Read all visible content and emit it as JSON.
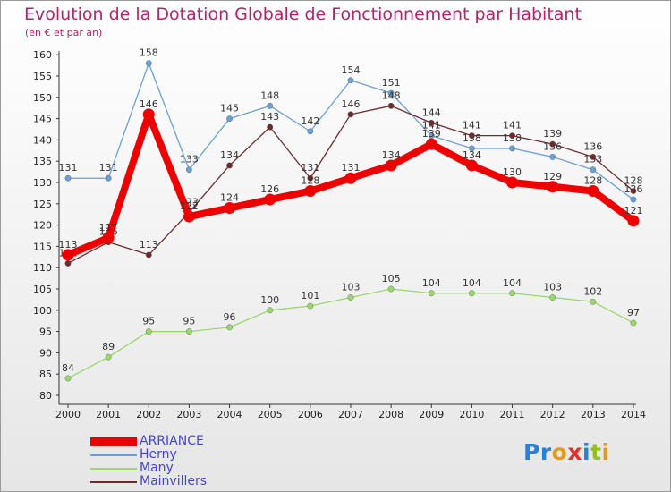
{
  "title": "Evolution de la Dotation Globale de Fonctionnement par Habitant",
  "subtitle": "(en € et par an)",
  "logo": {
    "text": "Proxiti",
    "letter_colors": [
      "#2b7fd4",
      "#2b7fd4",
      "#e69a1c",
      "#e0312c",
      "#2b7fd4",
      "#93c01f",
      "#e69a1c"
    ]
  },
  "chart_data": {
    "type": "line",
    "x": [
      "2000",
      "2001",
      "2002",
      "2003",
      "2004",
      "2005",
      "2006",
      "2007",
      "2008",
      "2009",
      "2010",
      "2011",
      "2012",
      "2013",
      "2014"
    ],
    "ylim": [
      80,
      160
    ],
    "yticks": [
      80,
      85,
      90,
      95,
      100,
      105,
      110,
      115,
      120,
      125,
      130,
      135,
      140,
      145,
      150,
      155,
      160
    ],
    "grid": false,
    "legend_position": "bottom-left",
    "series": [
      {
        "name": "Herny",
        "color": "#6aa0d6",
        "values": [
          131,
          131,
          158,
          133,
          145,
          148,
          142,
          154,
          151,
          141,
          138,
          138,
          136,
          133,
          126
        ]
      },
      {
        "name": "Many",
        "color": "#99d86a",
        "values": [
          84,
          89,
          95,
          95,
          96,
          100,
          101,
          103,
          105,
          104,
          104,
          104,
          103,
          102,
          97
        ]
      },
      {
        "name": "Mainvillers",
        "color": "#6b2b2b",
        "values": [
          111,
          116,
          113,
          123,
          134,
          143,
          131,
          146,
          148,
          144,
          141,
          141,
          139,
          136,
          128
        ]
      },
      {
        "name": "ARRIANCE",
        "color": "#ee0000",
        "values": [
          113,
          117,
          146,
          122,
          124,
          126,
          128,
          131,
          134,
          139,
          134,
          130,
          129,
          128,
          121
        ]
      }
    ]
  }
}
